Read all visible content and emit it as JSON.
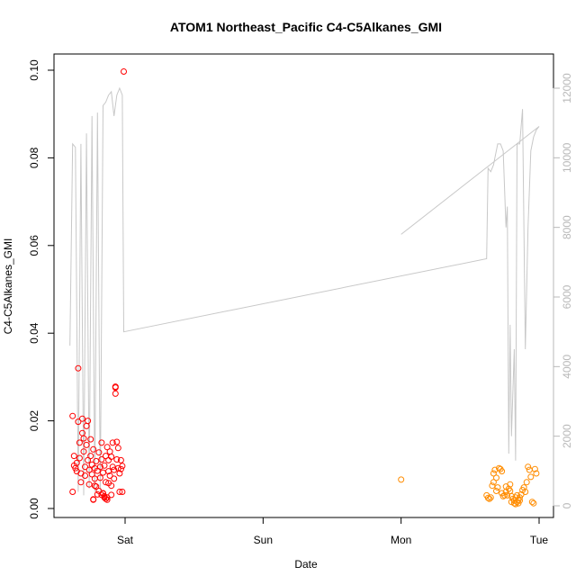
{
  "chart_data": {
    "type": "scatter",
    "title": "ATOM1 Northeast_Pacific C4-C5Alkanes_GMI",
    "xlabel": "Date",
    "ylabel": "C4-C5Alkanes_GMI",
    "x_tick_labels": [
      "Sat",
      "Sun",
      "Mon",
      "Tue"
    ],
    "x_tick_days": [
      1,
      2,
      3,
      4
    ],
    "xlim_days": [
      0.58,
      4.1
    ],
    "ylim": [
      0,
      0.1
    ],
    "y_ticks": [
      0.0,
      0.02,
      0.04,
      0.06,
      0.08,
      0.1
    ],
    "y_tick_labels": [
      "0.00",
      "0.02",
      "0.04",
      "0.06",
      "0.08",
      "0.10"
    ],
    "y2_lim": [
      0,
      12500
    ],
    "y2_ticks": [
      0,
      2000,
      4000,
      6000,
      8000,
      10000,
      12000
    ],
    "y2_tick_labels": [
      "0",
      "2000",
      "4000",
      "6000",
      "8000",
      "10000",
      "12000"
    ],
    "colors": {
      "series1": "#ff0000",
      "series2": "#ff8c00",
      "altitude": "#c8c8c8",
      "axes": "#000000",
      "right_axis": "#b8b8b8"
    },
    "series": [
      {
        "color": "#ff0000",
        "marker": "open-circle",
        "points": [
          [
            0.62,
            0.0211
          ],
          [
            0.62,
            0.0038
          ],
          [
            0.63,
            0.012
          ],
          [
            0.63,
            0.0098
          ],
          [
            0.64,
            0.0092
          ],
          [
            0.65,
            0.0104
          ],
          [
            0.65,
            0.0085
          ],
          [
            0.66,
            0.032
          ],
          [
            0.66,
            0.0198
          ],
          [
            0.67,
            0.015
          ],
          [
            0.67,
            0.0115
          ],
          [
            0.68,
            0.008
          ],
          [
            0.68,
            0.006
          ],
          [
            0.69,
            0.0172
          ],
          [
            0.69,
            0.0205
          ],
          [
            0.7,
            0.016
          ],
          [
            0.7,
            0.013
          ],
          [
            0.71,
            0.0095
          ],
          [
            0.71,
            0.0075
          ],
          [
            0.72,
            0.0188
          ],
          [
            0.72,
            0.0145
          ],
          [
            0.73,
            0.02
          ],
          [
            0.73,
            0.011
          ],
          [
            0.74,
            0.0088
          ],
          [
            0.74,
            0.0055
          ],
          [
            0.75,
            0.0158
          ],
          [
            0.75,
            0.012
          ],
          [
            0.76,
            0.01
          ],
          [
            0.76,
            0.0078
          ],
          [
            0.77,
            0.002
          ],
          [
            0.77,
            0.0135
          ],
          [
            0.78,
            0.0092
          ],
          [
            0.78,
            0.0068
          ],
          [
            0.79,
            0.0108
          ],
          [
            0.79,
            0.005
          ],
          [
            0.8,
            0.0032
          ],
          [
            0.8,
            0.0086
          ],
          [
            0.81,
            0.0128
          ],
          [
            0.81,
            0.004
          ],
          [
            0.82,
            0.0095
          ],
          [
            0.82,
            0.007
          ],
          [
            0.83,
            0.015
          ],
          [
            0.83,
            0.0112
          ],
          [
            0.84,
            0.0035
          ],
          [
            0.84,
            0.0082
          ],
          [
            0.85,
            0.0025
          ],
          [
            0.85,
            0.0098
          ],
          [
            0.86,
            0.012
          ],
          [
            0.86,
            0.006
          ],
          [
            0.87,
            0.014
          ],
          [
            0.87,
            0.002
          ],
          [
            0.88,
            0.011
          ],
          [
            0.88,
            0.0085
          ],
          [
            0.89,
            0.013
          ],
          [
            0.89,
            0.0075
          ],
          [
            0.9,
            0.0052
          ],
          [
            0.9,
            0.0118
          ],
          [
            0.91,
            0.0095
          ],
          [
            0.91,
            0.015
          ],
          [
            0.92,
            0.0088
          ],
          [
            0.92,
            0.0068
          ],
          [
            0.93,
            0.0276
          ],
          [
            0.93,
            0.0262
          ],
          [
            0.93,
            0.0278
          ],
          [
            0.94,
            0.0152
          ],
          [
            0.94,
            0.0112
          ],
          [
            0.95,
            0.0092
          ],
          [
            0.95,
            0.0138
          ],
          [
            0.96,
            0.008
          ],
          [
            0.96,
            0.0038
          ],
          [
            0.97,
            0.009
          ],
          [
            0.97,
            0.011
          ],
          [
            0.98,
            0.0038
          ],
          [
            0.98,
            0.0097
          ],
          [
            0.77,
            0.0021
          ],
          [
            0.83,
            0.0031
          ],
          [
            0.84,
            0.0034
          ],
          [
            0.85,
            0.0028
          ],
          [
            0.86,
            0.0022
          ],
          [
            0.87,
            0.0025
          ],
          [
            0.78,
            0.0052
          ],
          [
            0.88,
            0.0058
          ],
          [
            0.9,
            0.0031
          ],
          [
            0.99,
            0.0997
          ]
        ]
      },
      {
        "color": "#ff8c00",
        "marker": "open-circle",
        "points": [
          [
            3.0,
            0.0066
          ],
          [
            3.62,
            0.003
          ],
          [
            3.63,
            0.0024
          ],
          [
            3.64,
            0.0022
          ],
          [
            3.65,
            0.0025
          ],
          [
            3.66,
            0.0052
          ],
          [
            3.67,
            0.006
          ],
          [
            3.67,
            0.008
          ],
          [
            3.68,
            0.0088
          ],
          [
            3.69,
            0.007
          ],
          [
            3.69,
            0.004
          ],
          [
            3.7,
            0.0048
          ],
          [
            3.71,
            0.0092
          ],
          [
            3.72,
            0.009
          ],
          [
            3.73,
            0.0085
          ],
          [
            3.73,
            0.0035
          ],
          [
            3.74,
            0.0028
          ],
          [
            3.75,
            0.003
          ],
          [
            3.76,
            0.0038
          ],
          [
            3.76,
            0.005
          ],
          [
            3.77,
            0.003
          ],
          [
            3.78,
            0.0045
          ],
          [
            3.79,
            0.0055
          ],
          [
            3.79,
            0.004
          ],
          [
            3.8,
            0.0015
          ],
          [
            3.8,
            0.0028
          ],
          [
            3.81,
            0.0022
          ],
          [
            3.82,
            0.0012
          ],
          [
            3.82,
            0.0018
          ],
          [
            3.83,
            0.0025
          ],
          [
            3.83,
            0.001
          ],
          [
            3.84,
            0.0015
          ],
          [
            3.84,
            0.003
          ],
          [
            3.85,
            0.002
          ],
          [
            3.85,
            0.0012
          ],
          [
            3.86,
            0.0018
          ],
          [
            3.86,
            0.0025
          ],
          [
            3.87,
            0.0032
          ],
          [
            3.88,
            0.0042
          ],
          [
            3.89,
            0.0048
          ],
          [
            3.9,
            0.0038
          ],
          [
            3.91,
            0.006
          ],
          [
            3.92,
            0.0095
          ],
          [
            3.93,
            0.0088
          ],
          [
            3.94,
            0.0072
          ],
          [
            3.95,
            0.0015
          ],
          [
            3.96,
            0.0012
          ],
          [
            3.97,
            0.009
          ],
          [
            3.98,
            0.008
          ]
        ]
      }
    ],
    "altitude_line": {
      "color": "#c8c8c8",
      "points": [
        [
          0.6,
          4600
        ],
        [
          0.62,
          10400
        ],
        [
          0.64,
          10300
        ],
        [
          0.66,
          400
        ],
        [
          0.68,
          10400
        ],
        [
          0.7,
          300
        ],
        [
          0.72,
          10700
        ],
        [
          0.74,
          500
        ],
        [
          0.76,
          11200
        ],
        [
          0.78,
          400
        ],
        [
          0.8,
          11300
        ],
        [
          0.82,
          300
        ],
        [
          0.84,
          11500
        ],
        [
          0.86,
          11600
        ],
        [
          0.88,
          11800
        ],
        [
          0.9,
          11900
        ],
        [
          0.92,
          11200
        ],
        [
          0.94,
          11800
        ],
        [
          0.96,
          12000
        ],
        [
          0.98,
          11800
        ],
        [
          0.99,
          5000
        ],
        [
          3.62,
          7100
        ],
        [
          3.63,
          9700
        ],
        [
          3.65,
          9600
        ],
        [
          3.67,
          9800
        ],
        [
          3.68,
          10000
        ],
        [
          3.7,
          10400
        ],
        [
          3.72,
          10400
        ],
        [
          3.74,
          10200
        ],
        [
          3.76,
          8000
        ],
        [
          3.77,
          8600
        ],
        [
          3.78,
          1500
        ],
        [
          3.79,
          5200
        ],
        [
          3.8,
          2000
        ],
        [
          3.81,
          3300
        ],
        [
          3.82,
          4500
        ],
        [
          3.83,
          1300
        ],
        [
          3.84,
          10400
        ],
        [
          3.86,
          10400
        ],
        [
          3.88,
          11400
        ],
        [
          3.9,
          4500
        ],
        [
          3.92,
          8000
        ],
        [
          3.94,
          10200
        ],
        [
          3.96,
          10600
        ],
        [
          3.98,
          10800
        ],
        [
          4.0,
          10900
        ]
      ],
      "extra_segment": [
        [
          3.0,
          7800
        ],
        [
          4.0,
          10900
        ]
      ]
    }
  }
}
